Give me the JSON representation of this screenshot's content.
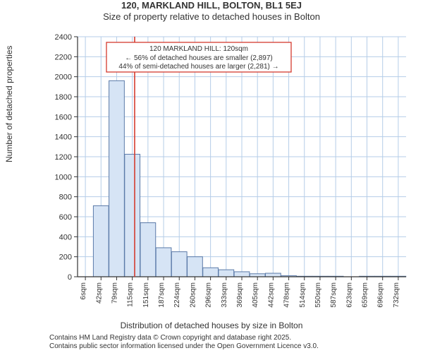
{
  "title": "120, MARKLAND HILL, BOLTON, BL1 5EJ",
  "subtitle": "Size of property relative to detached houses in Bolton",
  "y_axis_label": "Number of detached properties",
  "x_axis_label": "Distribution of detached houses by size in Bolton",
  "title_fontsize": 13,
  "subtitle_fontsize": 13,
  "axis_label_fontsize": 12,
  "tick_fontsize": 10,
  "annotation_fontsize": 10,
  "attrib_fontsize": 10,
  "chart": {
    "type": "histogram",
    "background_color": "#ffffff",
    "bar_fill": "#d6e4f5",
    "bar_stroke": "#5b7aa8",
    "grid_color": "#b5cde8",
    "axis_color": "#333333",
    "marker_line_color": "#d43b2f",
    "annotation_box_border": "#d43b2f",
    "annotation_box_fill": "#ffffff",
    "annotation_text_color": "#333333",
    "ylim": [
      0,
      2400
    ],
    "ytick_step": 200,
    "x_categories": [
      "6sqm",
      "42sqm",
      "79sqm",
      "115sqm",
      "151sqm",
      "187sqm",
      "224sqm",
      "260sqm",
      "296sqm",
      "333sqm",
      "369sqm",
      "405sqm",
      "442sqm",
      "478sqm",
      "514sqm",
      "550sqm",
      "587sqm",
      "623sqm",
      "659sqm",
      "696sqm",
      "732sqm"
    ],
    "values": [
      0,
      710,
      1960,
      1225,
      540,
      290,
      250,
      200,
      90,
      70,
      50,
      30,
      35,
      10,
      5,
      5,
      5,
      0,
      5,
      5,
      5
    ],
    "bar_width": 0.98,
    "marker_category_index": 3.15,
    "annotation": {
      "header": "120 MARKLAND HILL: 120sqm",
      "line1": "← 56% of detached houses are smaller (2,897)",
      "line2": "44% of semi-detached houses are larger (2,281) →"
    }
  },
  "attribution": {
    "line1": "Contains HM Land Registry data © Crown copyright and database right 2025.",
    "line2": "Contains public sector information licensed under the Open Government Licence v3.0."
  }
}
